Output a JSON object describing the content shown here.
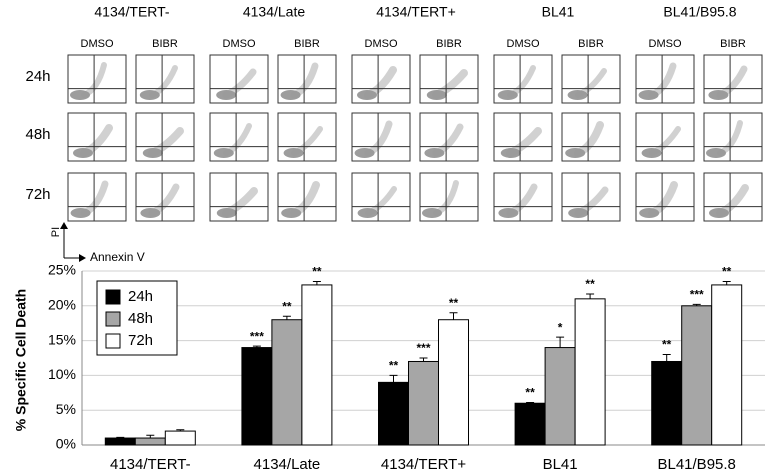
{
  "figure_panels": {
    "groups": [
      "4134/TERT-",
      "4134/Late",
      "4134/TERT+",
      "BL41",
      "BL41/B95.8"
    ],
    "treatments": [
      "DMSO",
      "BIBR"
    ],
    "times": [
      "24h",
      "48h",
      "72h"
    ],
    "y_axis_label": "PI",
    "x_axis_label": "Annexin V"
  },
  "chart_data": {
    "type": "bar",
    "y_axis_label": "% Specific Cell Death",
    "categories": [
      "4134/TERT-",
      "4134/Late",
      "4134/TERT+",
      "BL41",
      "BL41/B95.8"
    ],
    "series": [
      {
        "name": "24h",
        "color": "#000000",
        "values": [
          1,
          14,
          9,
          6,
          12
        ],
        "errors": [
          0.1,
          0.2,
          1,
          0.1,
          1
        ],
        "significance": [
          null,
          "***",
          "**",
          "**",
          "**"
        ]
      },
      {
        "name": "48h",
        "color": "#a6a6a6",
        "values": [
          1,
          18,
          12,
          14,
          20
        ],
        "errors": [
          0.4,
          0.5,
          0.5,
          1.5,
          0.2
        ],
        "significance": [
          null,
          "**",
          "***",
          "*",
          "***"
        ]
      },
      {
        "name": "72h",
        "color": "#ffffff",
        "values": [
          2,
          23,
          18,
          21,
          23
        ],
        "errors": [
          0.2,
          0.5,
          1,
          0.7,
          0.5
        ],
        "significance": [
          null,
          "**",
          "**",
          "**",
          "**"
        ]
      }
    ],
    "ylim": [
      0,
      25
    ],
    "yticks": [
      {
        "value": 0,
        "label": "0%"
      },
      {
        "value": 5,
        "label": "5%"
      },
      {
        "value": 10,
        "label": "10%"
      },
      {
        "value": 15,
        "label": "15%"
      },
      {
        "value": 20,
        "label": "20%"
      },
      {
        "value": 25,
        "label": "25%"
      }
    ],
    "grid": true,
    "legend": "top-left"
  }
}
